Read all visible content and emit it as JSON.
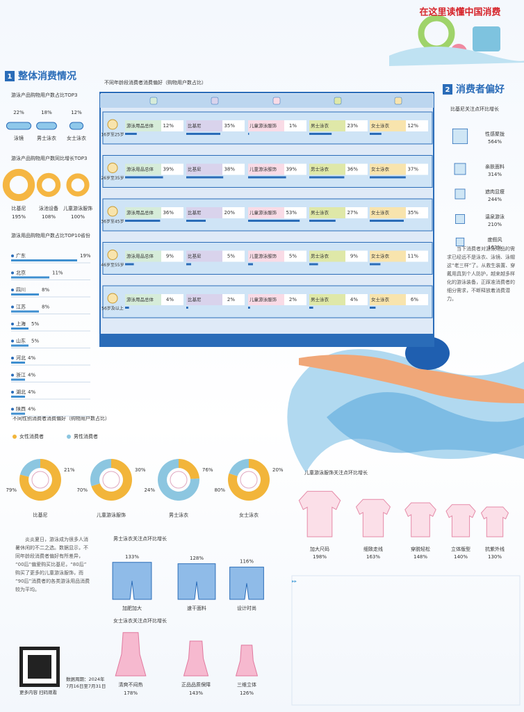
{
  "header": {
    "banner": "在这里读懂中国消费"
  },
  "section1": {
    "number": "1",
    "title": "整体消费情况",
    "usage_top3": {
      "title": "游泳产品购物用户数占比TOP3",
      "items": [
        {
          "name": "泳镜",
          "value": 22,
          "label": "22%"
        },
        {
          "name": "男士泳衣",
          "value": 18,
          "label": "18%"
        },
        {
          "name": "女士泳衣",
          "value": 12,
          "label": "12%"
        }
      ]
    },
    "growth_top3": {
      "title": "游泳产品购物用户数同比增长TOP3",
      "items": [
        {
          "name": "比基尼",
          "value": 195,
          "label": "195%"
        },
        {
          "name": "泳池设备",
          "value": 108,
          "label": "108%"
        },
        {
          "name": "儿童游泳服饰",
          "value": 100,
          "label": "100%"
        }
      ]
    },
    "provinces": {
      "title": "游泳用品购物用户数占比TOP10省份",
      "items": [
        {
          "name": "广东",
          "value": 19,
          "label": "19%"
        },
        {
          "name": "北京",
          "value": 11,
          "label": "11%"
        },
        {
          "name": "四川",
          "value": 8,
          "label": "8%"
        },
        {
          "name": "江苏",
          "value": 8,
          "label": "8%"
        },
        {
          "name": "上海",
          "value": 5,
          "label": "5%"
        },
        {
          "name": "山东",
          "value": 5,
          "label": "5%"
        },
        {
          "name": "河北",
          "value": 4,
          "label": "4%"
        },
        {
          "name": "浙江",
          "value": 4,
          "label": "4%"
        },
        {
          "name": "湖北",
          "value": 4,
          "label": "4%"
        },
        {
          "name": "陕西",
          "value": 4,
          "label": "4%"
        }
      ]
    }
  },
  "age_preference": {
    "title": "不同年龄段消费者消费偏好（购物用户数占比）",
    "categories": [
      "游泳用品总体",
      "比基尼",
      "儿童游泳服饰",
      "男士泳衣",
      "女士泳衣"
    ],
    "colors": [
      "#d6ecd9",
      "#d9d3ec",
      "#f9dbe6",
      "#dfe8a8",
      "#f8e4ad"
    ],
    "groups": [
      {
        "name": "16岁至25岁",
        "values": [
          {
            "value": 12,
            "label": "12%"
          },
          {
            "value": 35,
            "label": "35%"
          },
          {
            "value": 1,
            "label": "1%"
          },
          {
            "value": 23,
            "label": "23%"
          },
          {
            "value": 12,
            "label": "12%"
          }
        ]
      },
      {
        "name": "26岁至35岁",
        "values": [
          {
            "value": 39,
            "label": "39%"
          },
          {
            "value": 38,
            "label": "38%"
          },
          {
            "value": 39,
            "label": "39%"
          },
          {
            "value": 36,
            "label": "36%"
          },
          {
            "value": 37,
            "label": "37%"
          }
        ]
      },
      {
        "name": "36岁至45岁",
        "values": [
          {
            "value": 36,
            "label": "36%"
          },
          {
            "value": 20,
            "label": "20%"
          },
          {
            "value": 53,
            "label": "53%"
          },
          {
            "value": 27,
            "label": "27%"
          },
          {
            "value": 35,
            "label": "35%"
          }
        ]
      },
      {
        "name": "46岁至55岁",
        "values": [
          {
            "value": 9,
            "label": "9%"
          },
          {
            "value": 5,
            "label": "5%"
          },
          {
            "value": 5,
            "label": "5%"
          },
          {
            "value": 9,
            "label": "9%"
          },
          {
            "value": 11,
            "label": "11%"
          }
        ]
      },
      {
        "name": "56岁及以上",
        "values": [
          {
            "value": 4,
            "label": "4%"
          },
          {
            "value": 2,
            "label": "2%"
          },
          {
            "value": 2,
            "label": "2%"
          },
          {
            "value": 4,
            "label": "4%"
          },
          {
            "value": 6,
            "label": "6%"
          }
        ]
      }
    ]
  },
  "section2": {
    "number": "2",
    "title": "消费者偏好",
    "bikini": {
      "title": "比基尼关注点环比增长",
      "items": [
        {
          "name": "性感聚拢",
          "value": 564,
          "label": "564%"
        },
        {
          "name": "亲肤面料",
          "value": 314,
          "label": "314%"
        },
        {
          "name": "遮肉显瘦",
          "value": 244,
          "label": "244%"
        },
        {
          "name": "温泉游泳",
          "value": 210,
          "label": "210%"
        },
        {
          "name": "度假风",
          "value": 163,
          "label": "163%"
        }
      ]
    },
    "text": "当下消费者对游泳用品的需求已经远不是泳衣、泳镜、泳帽这“老三样”了。从救生装置、穿戴用具到个人防护，越来越多样化的游泳装备，正踩准消费者的细分需求，不断释放着消费潜力。"
  },
  "gender": {
    "title": "不同性别消费者消费偏好（购物用户数占比）",
    "legend": [
      "女性消费者",
      "男性消费者"
    ],
    "colors": [
      "#f2b53a",
      "#8cc6e0"
    ],
    "items": [
      {
        "name": "比基尼",
        "female": {
          "value": 79,
          "label": "79%"
        },
        "male": {
          "value": 21,
          "label": "21%"
        }
      },
      {
        "name": "儿童游泳服饰",
        "female": {
          "value": 70,
          "label": "70%"
        },
        "male": {
          "value": 30,
          "label": "30%"
        }
      },
      {
        "name": "男士泳衣",
        "female": {
          "value": 24,
          "label": "24%"
        },
        "male": {
          "value": 76,
          "label": "76%"
        }
      },
      {
        "name": "女士泳衣",
        "female": {
          "value": 80,
          "label": "80%"
        },
        "male": {
          "value": 20,
          "label": "20%"
        }
      }
    ]
  },
  "children": {
    "title": "儿童游泳服饰关注点环比增长",
    "items": [
      {
        "name": "加大尺码",
        "value": 198,
        "label": "198%"
      },
      {
        "name": "细致走线",
        "value": 163,
        "label": "163%"
      },
      {
        "name": "穿脱轻松",
        "value": 148,
        "label": "148%"
      },
      {
        "name": "立体版型",
        "value": 140,
        "label": "140%"
      },
      {
        "name": "抗紫外线",
        "value": 130,
        "label": "130%"
      }
    ]
  },
  "men": {
    "title": "男士泳衣关注点环比增长",
    "items": [
      {
        "name": "加肥加大",
        "value": 133,
        "label": "133%"
      },
      {
        "name": "速干面料",
        "value": 128,
        "label": "128%"
      },
      {
        "name": "设计时尚",
        "value": 116,
        "label": "116%"
      }
    ]
  },
  "women": {
    "title": "女士泳衣关注点环比增长",
    "items": [
      {
        "name": "清爽不闷热",
        "value": 178,
        "label": "178%"
      },
      {
        "name": "正品品质保障",
        "value": 143,
        "label": "143%"
      },
      {
        "name": "三维立体",
        "value": 126,
        "label": "126%"
      }
    ]
  },
  "intro": "炎炎夏日，游泳成为很多人消暑休闲的不二之选。数据显示，不同年龄段消费者偏好有所差异，“00后”偏爱购买比基尼，“80后”购买了更多的儿童游泳服饰，而“90后”消费者的各类游泳用品消费较为平均。",
  "footer": {
    "qr_caption": "更多内容 扫码观看",
    "period": "数据周期：2024年7月16日至7月31日"
  }
}
